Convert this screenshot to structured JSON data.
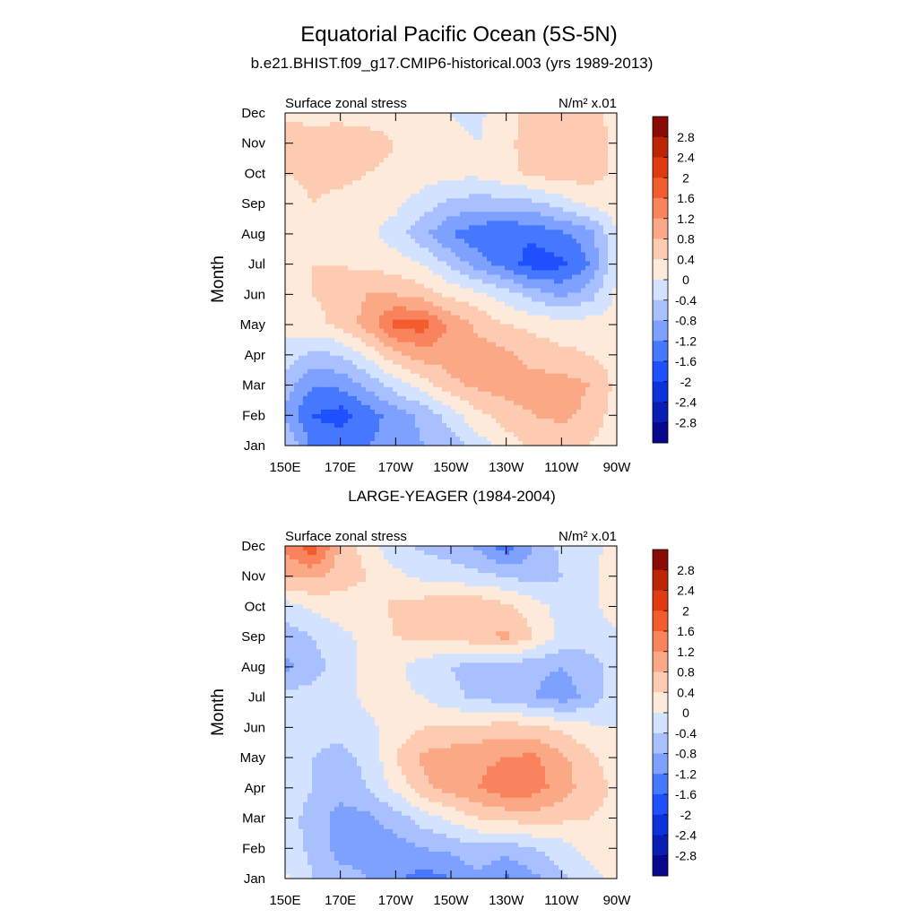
{
  "title": "Equatorial Pacific Ocean (5S-5N)",
  "colors": [
    "#08088c",
    "#0a1eb4",
    "#0c32dc",
    "#1e50ff",
    "#4678ff",
    "#7ea0ff",
    "#a8c0ff",
    "#d2e2ff",
    "#fdeadb",
    "#fdcbb1",
    "#fba886",
    "#f9835c",
    "#f35c2f",
    "#e03a10",
    "#bc2404",
    "#8c0a04"
  ],
  "chart_data": [
    {
      "type": "heatmap",
      "title": "b.e21.BHIST.f09_g17.CMIP6-historical.003 (yrs 1989-2013)",
      "left_label": "Surface zonal stress",
      "right_label": "N/m² x.01",
      "xlabel": "",
      "ylabel": "Month",
      "x_ticks": [
        "150E",
        "170E",
        "170W",
        "150W",
        "130W",
        "110W",
        "90W"
      ],
      "y_ticks": [
        "Jan",
        "Feb",
        "Mar",
        "Apr",
        "May",
        "Jun",
        "Jul",
        "Aug",
        "Sep",
        "Oct",
        "Nov",
        "Dec"
      ],
      "colorbar_labels": [
        "2.8",
        "2.4",
        "2",
        "1.6",
        "1.2",
        "0.8",
        "0.4",
        "0",
        "-0.4",
        "-0.8",
        "-1.2",
        "-1.6",
        "-2",
        "-2.4",
        "-2.8"
      ],
      "x": [
        "150E",
        "160E",
        "170E",
        "180",
        "170W",
        "160W",
        "150W",
        "140W",
        "130W",
        "120W",
        "110W",
        "100W",
        "90W"
      ],
      "y": [
        "Jan",
        "Feb",
        "Mar",
        "Apr",
        "May",
        "Jun",
        "Jul",
        "Aug",
        "Sep",
        "Oct",
        "Nov",
        "Dec"
      ],
      "z": [
        [
          -0.3,
          -1.3,
          -1.3,
          -1.2,
          -1.0,
          -0.8,
          -0.6,
          -0.2,
          0.2,
          0.5,
          0.5,
          0.4,
          0.1
        ],
        [
          -0.9,
          -1.6,
          -1.8,
          -1.4,
          -1.0,
          -0.7,
          -0.2,
          0.3,
          0.6,
          0.8,
          0.9,
          0.7,
          0.2
        ],
        [
          -0.6,
          -1.2,
          -1.1,
          -0.7,
          -0.2,
          0.2,
          0.7,
          0.9,
          1.0,
          1.0,
          1.0,
          0.8,
          0.3
        ],
        [
          -0.2,
          -0.5,
          -0.4,
          0.1,
          0.7,
          1.0,
          1.0,
          1.0,
          0.9,
          0.6,
          0.5,
          0.4,
          0.2
        ],
        [
          0.2,
          0.3,
          0.5,
          1.0,
          1.7,
          1.8,
          1.1,
          0.7,
          0.4,
          0.3,
          0.2,
          0.2,
          0.1
        ],
        [
          0.3,
          0.4,
          0.5,
          0.8,
          0.8,
          0.6,
          0.3,
          0.1,
          -0.2,
          -0.6,
          -0.9,
          -0.6,
          0.1
        ],
        [
          0.3,
          0.4,
          0.4,
          0.3,
          0.2,
          0.0,
          -0.5,
          -1.0,
          -1.4,
          -1.8,
          -1.7,
          -1.2,
          -0.1
        ],
        [
          0.3,
          0.4,
          0.3,
          0.1,
          -0.2,
          -0.7,
          -1.2,
          -1.5,
          -1.6,
          -1.5,
          -1.3,
          -1.0,
          0.0
        ],
        [
          0.2,
          0.4,
          0.3,
          0.2,
          0.1,
          -0.2,
          -0.5,
          -0.6,
          -0.6,
          -0.5,
          -0.2,
          0.1,
          0.2
        ],
        [
          0.4,
          0.5,
          0.5,
          0.4,
          0.3,
          0.2,
          0.1,
          0.1,
          0.3,
          0.5,
          0.6,
          0.6,
          0.3
        ],
        [
          0.7,
          0.5,
          0.6,
          0.6,
          0.4,
          0.2,
          0.1,
          0.0,
          0.3,
          0.6,
          0.7,
          0.6,
          0.3
        ],
        [
          0.3,
          0.3,
          0.3,
          0.2,
          0.2,
          0.1,
          0.0,
          -0.1,
          0.3,
          0.5,
          0.6,
          0.5,
          0.3
        ]
      ]
    },
    {
      "type": "heatmap",
      "title": "LARGE-YEAGER (1984-2004)",
      "left_label": "Surface zonal stress",
      "right_label": "N/m² x.01",
      "xlabel": "",
      "ylabel": "Month",
      "x_ticks": [
        "150E",
        "170E",
        "170W",
        "150W",
        "130W",
        "110W",
        "90W"
      ],
      "y_ticks": [
        "Jan",
        "Feb",
        "Mar",
        "Apr",
        "May",
        "Jun",
        "Jul",
        "Aug",
        "Sep",
        "Oct",
        "Nov",
        "Dec"
      ],
      "colorbar_labels": [
        "2.8",
        "2.4",
        "2",
        "1.6",
        "1.2",
        "0.8",
        "0.4",
        "0",
        "-0.4",
        "-0.8",
        "-1.2",
        "-1.6",
        "-2",
        "-2.4",
        "-2.8"
      ],
      "x": [
        "150E",
        "160E",
        "170E",
        "180",
        "170W",
        "160W",
        "150W",
        "140W",
        "130W",
        "120W",
        "110W",
        "100W",
        "90W"
      ],
      "y": [
        "Jan",
        "Feb",
        "Mar",
        "Apr",
        "May",
        "Jun",
        "Jul",
        "Aug",
        "Sep",
        "Oct",
        "Nov",
        "Dec"
      ],
      "z": [
        [
          0.1,
          -0.4,
          -0.6,
          -0.8,
          -1.1,
          -1.4,
          -1.2,
          -0.9,
          -1.3,
          -0.9,
          -0.5,
          -0.2,
          0.2
        ],
        [
          -0.2,
          -0.5,
          -1.0,
          -1.0,
          -1.0,
          -0.8,
          -0.7,
          -0.5,
          -0.6,
          -0.4,
          -0.2,
          0.2,
          0.3
        ],
        [
          -0.3,
          -0.5,
          -1.0,
          -0.9,
          -0.6,
          -0.2,
          0.1,
          0.4,
          0.5,
          0.6,
          0.5,
          0.4,
          0.3
        ],
        [
          -0.2,
          -0.4,
          -0.6,
          -0.4,
          0.1,
          0.7,
          1.0,
          1.2,
          1.5,
          1.4,
          1.0,
          0.6,
          0.3
        ],
        [
          -0.2,
          -0.4,
          -0.5,
          -0.3,
          0.4,
          0.9,
          1.0,
          1.1,
          1.2,
          1.3,
          0.9,
          0.5,
          0.2
        ],
        [
          -0.1,
          -0.3,
          -0.3,
          -0.1,
          0.2,
          0.4,
          0.5,
          0.5,
          0.6,
          0.5,
          0.3,
          0.1,
          0.0
        ],
        [
          -0.3,
          -0.2,
          -0.2,
          0.1,
          0.1,
          0.0,
          -0.3,
          -0.5,
          -0.6,
          -0.8,
          -1.0,
          -0.7,
          -0.1
        ],
        [
          -0.9,
          -0.6,
          -0.2,
          0.1,
          0.1,
          -0.2,
          -0.4,
          -0.6,
          -0.6,
          -0.7,
          -0.8,
          -0.6,
          -0.2
        ],
        [
          -0.6,
          -0.4,
          -0.1,
          0.1,
          0.4,
          0.5,
          0.5,
          0.7,
          0.9,
          0.4,
          -0.1,
          -0.2,
          -0.1
        ],
        [
          -0.2,
          0.1,
          0.2,
          0.2,
          0.5,
          0.6,
          0.7,
          0.7,
          0.5,
          0.2,
          -0.2,
          -0.2,
          0.3
        ],
        [
          0.8,
          0.9,
          0.6,
          0.4,
          0.1,
          -0.1,
          -0.2,
          -0.3,
          -0.4,
          -0.6,
          -0.4,
          -0.1,
          0.2
        ],
        [
          1.3,
          1.9,
          0.7,
          0.2,
          -0.3,
          -0.5,
          -0.6,
          -0.9,
          -1.5,
          -0.8,
          -0.3,
          -0.1,
          0.1
        ]
      ]
    }
  ]
}
